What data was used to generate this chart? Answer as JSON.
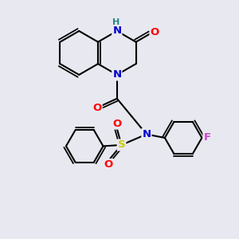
{
  "bg_color": "#e8e8f0",
  "bond_color": "#000000",
  "atom_colors": {
    "N": "#0000cc",
    "O": "#ff0000",
    "S": "#cccc00",
    "F": "#cc44cc",
    "H": "#228888",
    "C": "#000000"
  },
  "line_width": 1.5,
  "font_size": 9.5,
  "fig_size": [
    3.0,
    3.0
  ],
  "dpi": 100,
  "xlim": [
    0,
    10
  ],
  "ylim": [
    0,
    10
  ]
}
